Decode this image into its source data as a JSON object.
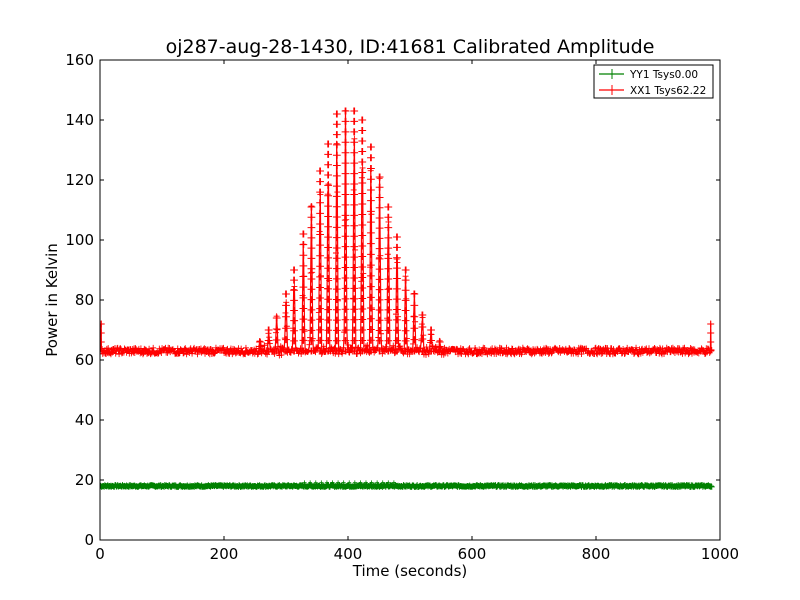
{
  "chart_data": {
    "type": "line",
    "title": "oj287-aug-28-1430, ID:41681 Calibrated Amplitude",
    "xlabel": "Time (seconds)",
    "ylabel": "Power in Kelvin",
    "xlim": [
      0,
      1000
    ],
    "ylim": [
      0,
      160
    ],
    "xticks": [
      0,
      200,
      400,
      600,
      800,
      1000
    ],
    "yticks": [
      0,
      20,
      40,
      60,
      80,
      100,
      120,
      140,
      160
    ],
    "grid": false,
    "legend_position": "top-right",
    "series": [
      {
        "name": "YY1 Tsys0.00",
        "color": "#008000",
        "marker": "+",
        "baseline": 18,
        "x_range": [
          0,
          987
        ],
        "x": [
          0,
          987
        ],
        "y": [
          18,
          18
        ]
      },
      {
        "name": "XX1 Tsys62.22",
        "color": "#ff0000",
        "marker": "+",
        "baseline": 63,
        "x_range": [
          0,
          987
        ],
        "edge_spikes": [
          {
            "x": 2,
            "y": 72
          },
          {
            "x": 985,
            "y": 72
          }
        ],
        "peaks": [
          {
            "x": 258,
            "y": 66
          },
          {
            "x": 272,
            "y": 70
          },
          {
            "x": 285,
            "y": 74
          },
          {
            "x": 300,
            "y": 82
          },
          {
            "x": 313,
            "y": 90
          },
          {
            "x": 328,
            "y": 102
          },
          {
            "x": 341,
            "y": 111
          },
          {
            "x": 355,
            "y": 123
          },
          {
            "x": 368,
            "y": 132
          },
          {
            "x": 382,
            "y": 142
          },
          {
            "x": 396,
            "y": 143
          },
          {
            "x": 410,
            "y": 143
          },
          {
            "x": 423,
            "y": 140
          },
          {
            "x": 437,
            "y": 131
          },
          {
            "x": 451,
            "y": 121
          },
          {
            "x": 465,
            "y": 111
          },
          {
            "x": 479,
            "y": 101
          },
          {
            "x": 493,
            "y": 90
          },
          {
            "x": 507,
            "y": 82
          },
          {
            "x": 520,
            "y": 75
          },
          {
            "x": 534,
            "y": 70
          },
          {
            "x": 548,
            "y": 66
          }
        ]
      }
    ]
  }
}
